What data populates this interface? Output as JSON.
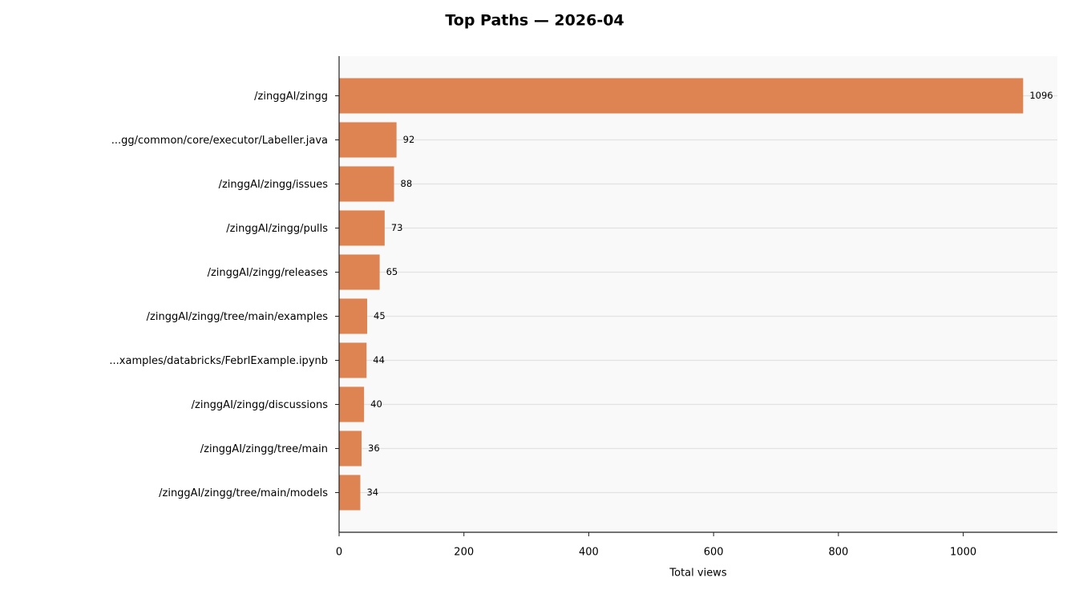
{
  "chart_data": {
    "type": "barh",
    "title": "Top Paths — 2026-04",
    "xlabel": "Total views",
    "categories": [
      "/zinggAI/zingg",
      "...gg/common/core/executor/Labeller.java",
      "/zinggAI/zingg/issues",
      "/zinggAI/zingg/pulls",
      "/zinggAI/zingg/releases",
      "/zinggAI/zingg/tree/main/examples",
      "...xamples/databricks/FebrlExample.ipynb",
      "/zinggAI/zingg/discussions",
      "/zinggAI/zingg/tree/main",
      "/zinggAI/zingg/tree/main/models"
    ],
    "values": [
      1096,
      92,
      88,
      73,
      65,
      45,
      44,
      40,
      36,
      34
    ],
    "color": "#dd8452",
    "xlim": [
      0,
      1150.8
    ],
    "xticks": [
      0,
      200,
      400,
      600,
      800,
      1000
    ],
    "grid": true
  }
}
